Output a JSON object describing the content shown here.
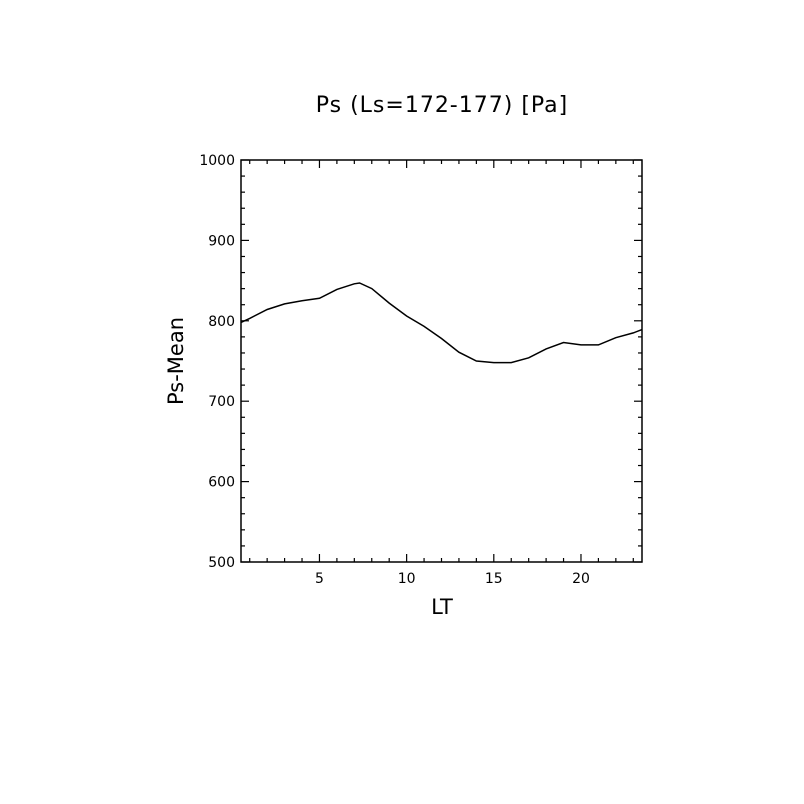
{
  "chart_data": {
    "type": "line",
    "title": "Ps (Ls=172-177) [Pa]",
    "xlabel": "LT",
    "ylabel": "Ps-Mean",
    "xlim": [
      0.5,
      23.5
    ],
    "ylim": [
      500,
      1000
    ],
    "x_ticks": [
      5,
      10,
      15,
      20
    ],
    "y_ticks": [
      500,
      600,
      700,
      800,
      900,
      1000
    ],
    "grid": false,
    "series": [
      {
        "x": [
          0.5,
          1.0,
          2.0,
          3.0,
          4.0,
          5.0,
          6.0,
          7.0,
          7.3,
          8.0,
          9.0,
          10.0,
          11.0,
          12.0,
          13.0,
          14.0,
          15.0,
          16.0,
          17.0,
          18.0,
          19.0,
          20.0,
          21.0,
          22.0,
          23.0,
          23.5
        ],
        "y": [
          798,
          803,
          814,
          821,
          825,
          828,
          839,
          846,
          847,
          840,
          822,
          806,
          793,
          778,
          761,
          750,
          748,
          748,
          754,
          765,
          773,
          770,
          770,
          779,
          785,
          789
        ]
      }
    ]
  }
}
